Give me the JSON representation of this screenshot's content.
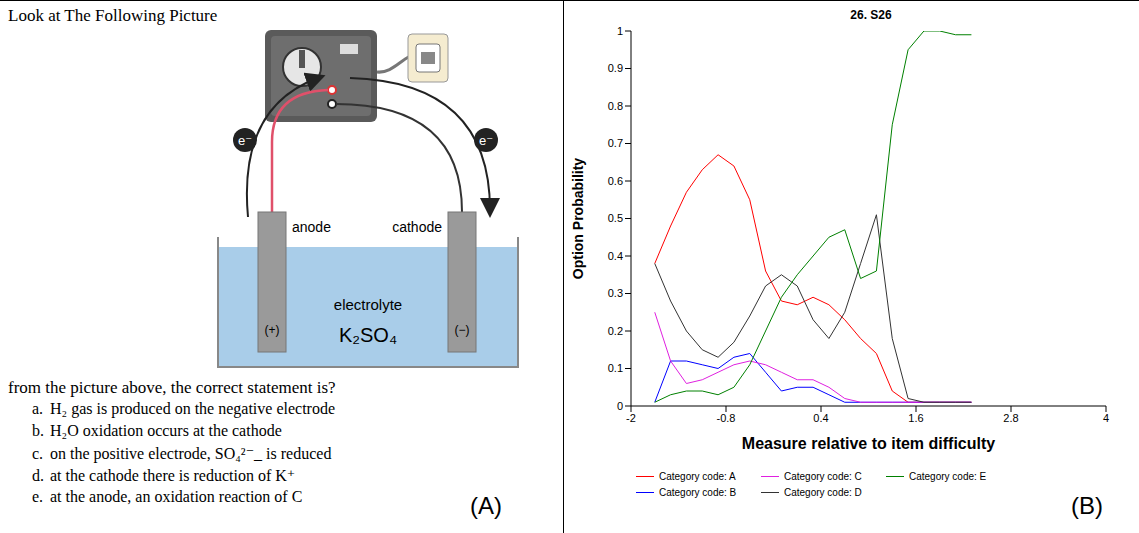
{
  "panel_a": {
    "letter": "(A)",
    "heading": "Look at The Following Picture",
    "diagram": {
      "anode": "anode",
      "cathode": "cathode",
      "positive": "(+)",
      "negative": "(−)",
      "electron": "e⁻",
      "electrolyte": "electrolyte",
      "solution": "K₂SO₄"
    },
    "question": "from the picture above, the correct statement is?",
    "options": [
      {
        "letter": "a.",
        "text": "H₂ gas is produced on the negative electrode"
      },
      {
        "letter": "b.",
        "text": "H₂O oxidation occurs at the cathode"
      },
      {
        "letter": "c.",
        "text": "on the positive electrode, SO₄²⁻_ is reduced"
      },
      {
        "letter": "d.",
        "text": "at the cathode there is reduction of K⁺"
      },
      {
        "letter": "e.",
        "text": "at the anode, an oxidation reaction of C"
      }
    ]
  },
  "panel_b": {
    "letter": "(B)"
  },
  "chart_data": {
    "type": "line",
    "title": "26. S26",
    "x_label": "Measure relative to item difficulty",
    "y_label": "Option Probability",
    "x": [
      -1.7,
      -1.5,
      -1.3,
      -1.1,
      -0.9,
      -0.7,
      -0.5,
      -0.3,
      -0.1,
      0.1,
      0.3,
      0.5,
      0.7,
      0.9,
      1.1,
      1.3,
      1.5,
      1.7,
      1.9,
      2.1,
      2.3
    ],
    "xlim": [
      -2,
      4
    ],
    "xticks": [
      -2,
      -0.8,
      0.4,
      1.6,
      2.8,
      4
    ],
    "ylim": [
      0,
      1
    ],
    "yticks": [
      0,
      0.1,
      0.2,
      0.3,
      0.4,
      0.5,
      0.6,
      0.7,
      0.8,
      0.9,
      1
    ],
    "grid": false,
    "legend": "bottom",
    "series": [
      {
        "name": "Category code: A",
        "color": "#ff0000",
        "values": [
          0.38,
          0.48,
          0.57,
          0.63,
          0.67,
          0.64,
          0.55,
          0.36,
          0.28,
          0.27,
          0.29,
          0.27,
          0.23,
          0.18,
          0.14,
          0.04,
          0.01,
          0.01,
          0.01,
          0.01,
          0.01
        ]
      },
      {
        "name": "Category code: B",
        "color": "#0000ff",
        "values": [
          0.01,
          0.12,
          0.12,
          0.11,
          0.1,
          0.13,
          0.14,
          0.09,
          0.04,
          0.05,
          0.05,
          0.03,
          0.01,
          0.01,
          0.01,
          0.01,
          0.01,
          0.01,
          0.01,
          0.01,
          0.01
        ]
      },
      {
        "name": "Category code: C",
        "color": "#e020e0",
        "values": [
          0.25,
          0.12,
          0.06,
          0.07,
          0.09,
          0.11,
          0.12,
          0.11,
          0.09,
          0.07,
          0.07,
          0.05,
          0.02,
          0.01,
          0.01,
          0.01,
          0.01,
          0.01,
          0.01,
          0.01,
          0.01
        ]
      },
      {
        "name": "Category code: D",
        "color": "#333333",
        "values": [
          0.38,
          0.28,
          0.2,
          0.15,
          0.13,
          0.17,
          0.24,
          0.32,
          0.35,
          0.32,
          0.23,
          0.18,
          0.25,
          0.38,
          0.51,
          0.18,
          0.02,
          0.01,
          0.01,
          0.01,
          0.01
        ]
      },
      {
        "name": "Category code: E",
        "color": "#008000",
        "values": [
          0.01,
          0.03,
          0.04,
          0.04,
          0.03,
          0.05,
          0.11,
          0.2,
          0.29,
          0.35,
          0.4,
          0.45,
          0.47,
          0.34,
          0.36,
          0.75,
          0.95,
          1.0,
          1.0,
          0.99,
          0.99
        ]
      }
    ]
  }
}
